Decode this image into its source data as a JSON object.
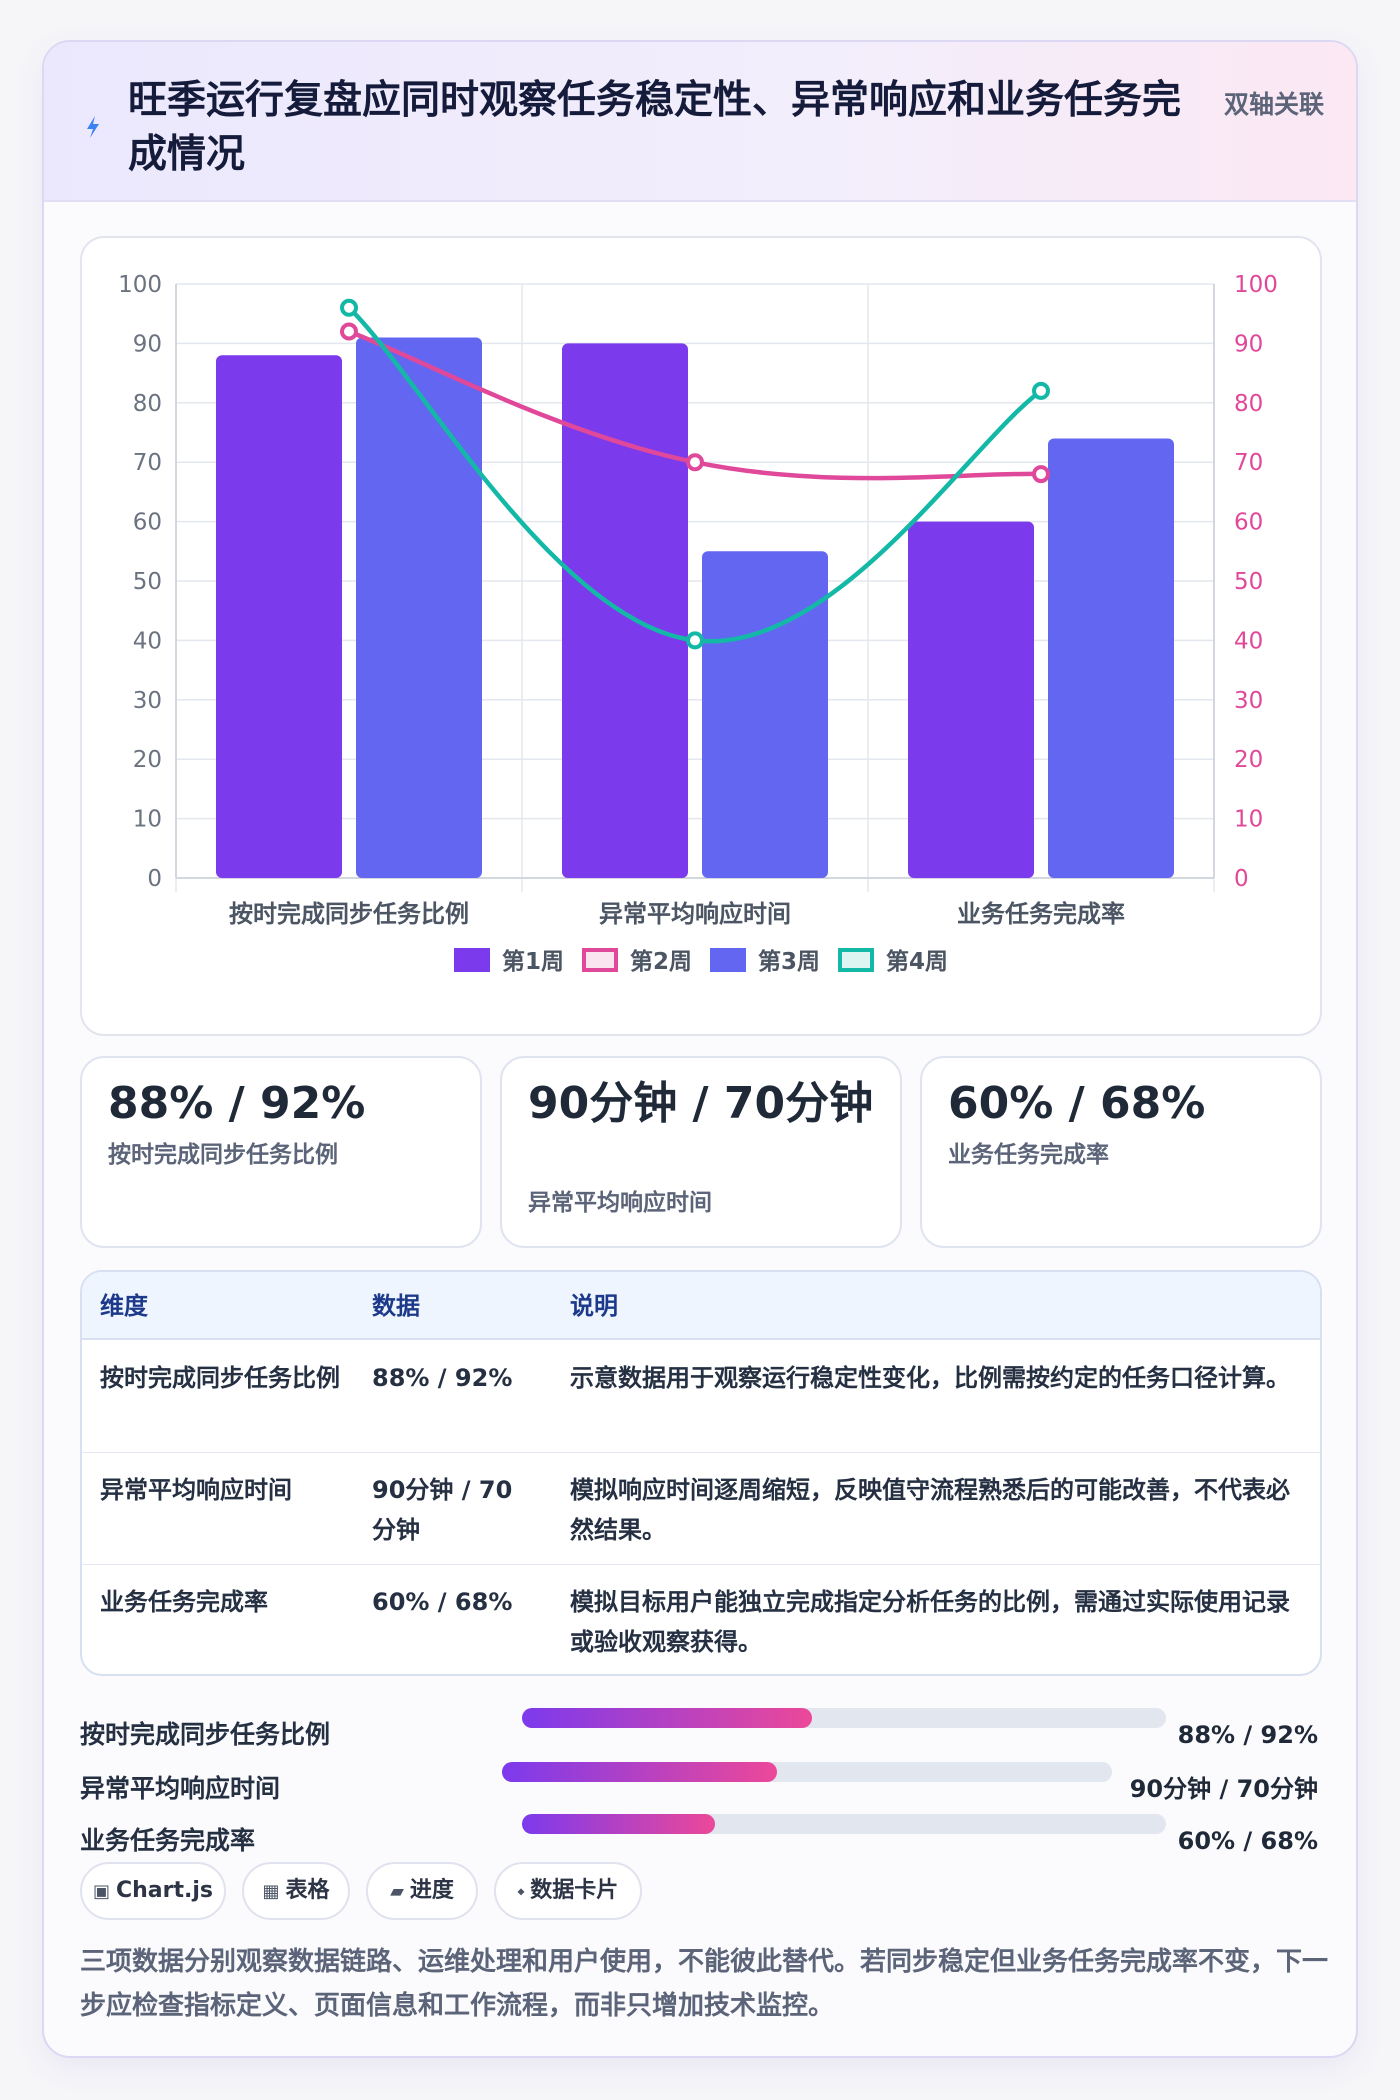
{
  "header": {
    "title": "旺季运行复盘应同时观察任务稳定性、异常响应和业务任务完成情况",
    "tag": "双轴关联",
    "icon": "lightning-icon"
  },
  "chart_data": {
    "type": "bar",
    "categories": [
      "按时完成同步任务比例",
      "异常平均响应时间",
      "业务任务完成率"
    ],
    "series": [
      {
        "name": "第1周",
        "type": "bar",
        "axis": "left",
        "color": "#7c3aed",
        "values": [
          88,
          90,
          60
        ]
      },
      {
        "name": "第2周",
        "type": "line",
        "axis": "right",
        "color": "#e0489a",
        "values": [
          92,
          70,
          68
        ]
      },
      {
        "name": "第3周",
        "type": "bar",
        "axis": "left",
        "color": "#6366f1",
        "values": [
          91,
          55,
          74
        ]
      },
      {
        "name": "第4周",
        "type": "line",
        "axis": "right",
        "color": "#14b8a6",
        "values": [
          96,
          40,
          82
        ]
      }
    ],
    "ylim": [
      0,
      100
    ],
    "y2lim": [
      0,
      100
    ],
    "yticks": [
      "0",
      "10",
      "20",
      "30",
      "40",
      "50",
      "60",
      "70",
      "80",
      "90",
      "100"
    ],
    "grid": true,
    "legend": "bottom"
  },
  "stats": [
    {
      "value": "88% / 92%",
      "label": "按时完成同步任务比例",
      "color": "#7c3aed"
    },
    {
      "value": "90分钟 / 70分钟",
      "label": "异常平均响应时间",
      "color": "#e0489a"
    },
    {
      "value": "60% / 68%",
      "label": "业务任务完成率",
      "color": "#5b5fe0"
    }
  ],
  "table": {
    "headers": [
      "维度",
      "数据",
      "说明"
    ],
    "rows": [
      [
        "按时完成同步任务比例",
        "88% / 92%",
        "示意数据用于观察运行稳定性变化，比例需按约定的任务口径计算。"
      ],
      [
        "异常平均响应时间",
        "90分钟 / 70分钟",
        "模拟响应时间逐周缩短，反映值守流程熟悉后的可能改善，不代表必然结果。"
      ],
      [
        "业务任务完成率",
        "60% / 68%",
        "模拟目标用户能独立完成指定分析任务的比例，需通过实际使用记录或验收观察获得。"
      ]
    ]
  },
  "progress": [
    {
      "label": "按时完成同步任务比例",
      "value": "88% / 92%",
      "fill": 0.45
    },
    {
      "label": "异常平均响应时间",
      "value": "90分钟 / 70分钟",
      "fill": 0.45
    },
    {
      "label": "业务任务完成率",
      "value": "60% / 68%",
      "fill": 0.3
    }
  ],
  "chips": [
    {
      "icon": "▣",
      "label": "Chart.js"
    },
    {
      "icon": "▦",
      "label": "表格"
    },
    {
      "icon": "▰",
      "label": "进度"
    },
    {
      "icon": "⬩",
      "label": "数据卡片"
    }
  ],
  "footnote": "三项数据分别观察数据链路、运维处理和用户使用，不能彼此替代。若同步稳定但业务任务完成率不变，下一步应检查指标定义、页面信息和工作流程，而非只增加技术监控。"
}
